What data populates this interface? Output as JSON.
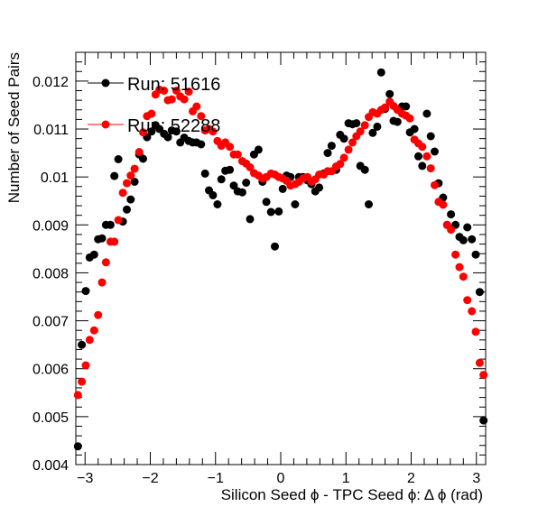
{
  "chart_data": {
    "type": "scatter",
    "xlabel": "Silicon Seed  ϕ - TPC Seed  ϕ: Δ ϕ (rad)",
    "ylabel": "Number of Seed Pairs",
    "xlim": [
      -3.1416,
      3.1416
    ],
    "ylim": [
      0.004,
      0.0126
    ],
    "x_ticks": [
      -3,
      -2,
      -1,
      0,
      1,
      2,
      3
    ],
    "y_ticks": [
      0.004,
      0.005,
      0.006,
      0.007,
      0.008,
      0.009,
      0.01,
      0.011,
      0.012
    ],
    "y_tick_labels": [
      "0.004",
      "0.005",
      "0.006",
      "0.007",
      "0.008",
      "0.009",
      "0.01",
      "0.011",
      "0.012"
    ],
    "legend_position": "top-left",
    "series": [
      {
        "name": "Run: 51616",
        "color": "#000000",
        "x": [
          -3.11,
          -3.05,
          -2.99,
          -2.93,
          -2.86,
          -2.8,
          -2.74,
          -2.68,
          -2.61,
          -2.55,
          -2.49,
          -2.42,
          -2.36,
          -2.3,
          -2.24,
          -2.17,
          -2.11,
          -2.05,
          -1.98,
          -1.92,
          -1.86,
          -1.79,
          -1.73,
          -1.67,
          -1.6,
          -1.54,
          -1.48,
          -1.41,
          -1.35,
          -1.29,
          -1.22,
          -1.16,
          -1.1,
          -1.04,
          -0.97,
          -0.91,
          -0.85,
          -0.78,
          -0.72,
          -0.66,
          -0.59,
          -0.53,
          -0.47,
          -0.41,
          -0.34,
          -0.28,
          -0.22,
          -0.15,
          -0.09,
          -0.03,
          0.03,
          0.09,
          0.15,
          0.22,
          0.28,
          0.34,
          0.41,
          0.47,
          0.53,
          0.59,
          0.66,
          0.72,
          0.78,
          0.85,
          0.91,
          0.97,
          1.04,
          1.1,
          1.16,
          1.22,
          1.29,
          1.35,
          1.41,
          1.48,
          1.54,
          1.6,
          1.67,
          1.73,
          1.79,
          1.86,
          1.92,
          1.98,
          2.05,
          2.11,
          2.17,
          2.24,
          2.3,
          2.36,
          2.42,
          2.49,
          2.55,
          2.61,
          2.68,
          2.74,
          2.8,
          2.86,
          2.93,
          2.99,
          3.05,
          3.11
        ],
        "y": [
          0.00438,
          0.0065,
          0.00762,
          0.00832,
          0.00838,
          0.0087,
          0.00872,
          0.009,
          0.009,
          0.01002,
          0.01037,
          0.00907,
          0.00932,
          0.00953,
          0.0099,
          0.01047,
          0.01038,
          0.01083,
          0.01095,
          0.01108,
          0.011,
          0.0109,
          0.01083,
          0.01097,
          0.01095,
          0.01072,
          0.01082,
          0.01075,
          0.01072,
          0.01072,
          0.01068,
          0.01007,
          0.00972,
          0.00962,
          0.00943,
          0.00995,
          0.01013,
          0.01015,
          0.00982,
          0.0097,
          0.00968,
          0.00988,
          0.00912,
          0.01047,
          0.01057,
          0.0099,
          0.00948,
          0.00927,
          0.00855,
          0.00928,
          0.00975,
          0.01003,
          0.01,
          0.00943,
          0.01,
          0.01,
          0.00993,
          0.00985,
          0.0097,
          0.00978,
          0.01007,
          0.0105,
          0.01065,
          0.01015,
          0.01088,
          0.0108,
          0.01112,
          0.0111,
          0.01112,
          0.01023,
          0.01015,
          0.00943,
          0.01092,
          0.01105,
          0.01218,
          0.01142,
          0.01173,
          0.01117,
          0.01115,
          0.01147,
          0.01147,
          0.01093,
          0.011,
          0.01043,
          0.01023,
          0.01132,
          0.01085,
          0.01053,
          0.00987,
          0.00957,
          0.009,
          0.00922,
          0.009,
          0.00875,
          0.00868,
          0.00895,
          0.0087,
          0.00838,
          0.0076,
          0.00492
        ]
      },
      {
        "name": "Run: 52288",
        "color": "#ff0000",
        "x": [
          -3.11,
          -3.05,
          -2.99,
          -2.93,
          -2.86,
          -2.8,
          -2.74,
          -2.68,
          -2.61,
          -2.55,
          -2.49,
          -2.42,
          -2.36,
          -2.3,
          -2.24,
          -2.17,
          -2.11,
          -2.05,
          -1.98,
          -1.92,
          -1.86,
          -1.79,
          -1.73,
          -1.67,
          -1.6,
          -1.54,
          -1.48,
          -1.41,
          -1.35,
          -1.29,
          -1.22,
          -1.16,
          -1.1,
          -1.04,
          -0.97,
          -0.91,
          -0.85,
          -0.78,
          -0.72,
          -0.66,
          -0.59,
          -0.53,
          -0.47,
          -0.41,
          -0.34,
          -0.28,
          -0.22,
          -0.15,
          -0.09,
          -0.03,
          0.03,
          0.09,
          0.15,
          0.22,
          0.28,
          0.34,
          0.41,
          0.47,
          0.53,
          0.59,
          0.66,
          0.72,
          0.78,
          0.85,
          0.91,
          0.97,
          1.04,
          1.1,
          1.16,
          1.22,
          1.29,
          1.35,
          1.41,
          1.48,
          1.54,
          1.6,
          1.67,
          1.73,
          1.79,
          1.86,
          1.92,
          1.98,
          2.05,
          2.11,
          2.17,
          2.24,
          2.3,
          2.36,
          2.42,
          2.49,
          2.55,
          2.61,
          2.68,
          2.74,
          2.8,
          2.86,
          2.93,
          2.99,
          3.05,
          3.11
        ],
        "y": [
          0.00545,
          0.00573,
          0.00607,
          0.0066,
          0.0068,
          0.00712,
          0.0078,
          0.00822,
          0.00865,
          0.00865,
          0.0091,
          0.00967,
          0.00987,
          0.01003,
          0.01017,
          0.01052,
          0.01093,
          0.01127,
          0.01132,
          0.01172,
          0.01182,
          0.0118,
          0.0116,
          0.01162,
          0.0118,
          0.01168,
          0.01162,
          0.01178,
          0.01137,
          0.01147,
          0.01127,
          0.01097,
          0.011,
          0.01095,
          0.01075,
          0.01065,
          0.01072,
          0.01063,
          0.01047,
          0.01047,
          0.01033,
          0.01028,
          0.0102,
          0.01008,
          0.01003,
          0.00997,
          0.01,
          0.01007,
          0.01005,
          0.01,
          0.00997,
          0.00992,
          0.00982,
          0.00985,
          0.0099,
          0.00997,
          0.01,
          0.0099,
          0.00995,
          0.01005,
          0.01005,
          0.01012,
          0.01012,
          0.01022,
          0.01027,
          0.0104,
          0.01057,
          0.01072,
          0.01085,
          0.01095,
          0.01108,
          0.01125,
          0.01135,
          0.01132,
          0.0114,
          0.01145,
          0.01157,
          0.01148,
          0.0114,
          0.01132,
          0.01128,
          0.01122,
          0.01078,
          0.0107,
          0.01063,
          0.01043,
          0.01018,
          0.00983,
          0.00948,
          0.00942,
          0.009,
          0.0089,
          0.00838,
          0.00812,
          0.00792,
          0.00743,
          0.0072,
          0.00677,
          0.00612,
          0.00587
        ]
      }
    ]
  }
}
